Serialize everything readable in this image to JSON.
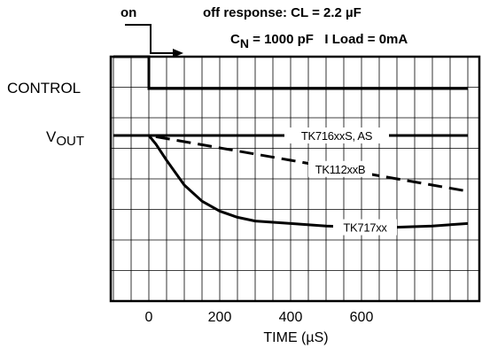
{
  "chart_data": {
    "type": "line",
    "header": {
      "on_label": "on",
      "title_line1": "off response: CL = 2.2 µF",
      "cn_c": "C",
      "cn_n": "N",
      "cn_rest": " = 1000 pF   I Load = 0mA"
    },
    "y_labels": {
      "control": "CONTROL",
      "vout_v": "V",
      "vout_sub": "OUT"
    },
    "xlabel": "TIME (µS)",
    "xlim": [
      -100,
      900
    ],
    "x_ticks": [
      0,
      200,
      400,
      600
    ],
    "series": [
      {
        "name": "TK716xxS, AS",
        "style": "solid",
        "x": [
          -100,
          0,
          900
        ],
        "y": [
          1.0,
          1.0,
          1.0
        ]
      },
      {
        "name": "TK112xxB",
        "style": "dashed",
        "x": [
          -100,
          0,
          100,
          200,
          300,
          400,
          500,
          600,
          700,
          800,
          900
        ],
        "y": [
          1.0,
          1.0,
          0.95,
          0.9,
          0.85,
          0.8,
          0.75,
          0.7,
          0.65,
          0.6,
          0.55
        ]
      },
      {
        "name": "TK717xx",
        "style": "solid",
        "x": [
          -100,
          0,
          20,
          50,
          100,
          150,
          200,
          250,
          300,
          400,
          500,
          600,
          700,
          800,
          900
        ],
        "y": [
          1.0,
          1.0,
          0.93,
          0.8,
          0.6,
          0.47,
          0.39,
          0.34,
          0.31,
          0.29,
          0.27,
          0.26,
          0.26,
          0.27,
          0.29
        ]
      }
    ],
    "control_signal": {
      "x": [
        -100,
        0,
        0,
        900
      ],
      "level": [
        "high",
        "high",
        "low",
        "low"
      ]
    },
    "grid": true
  }
}
